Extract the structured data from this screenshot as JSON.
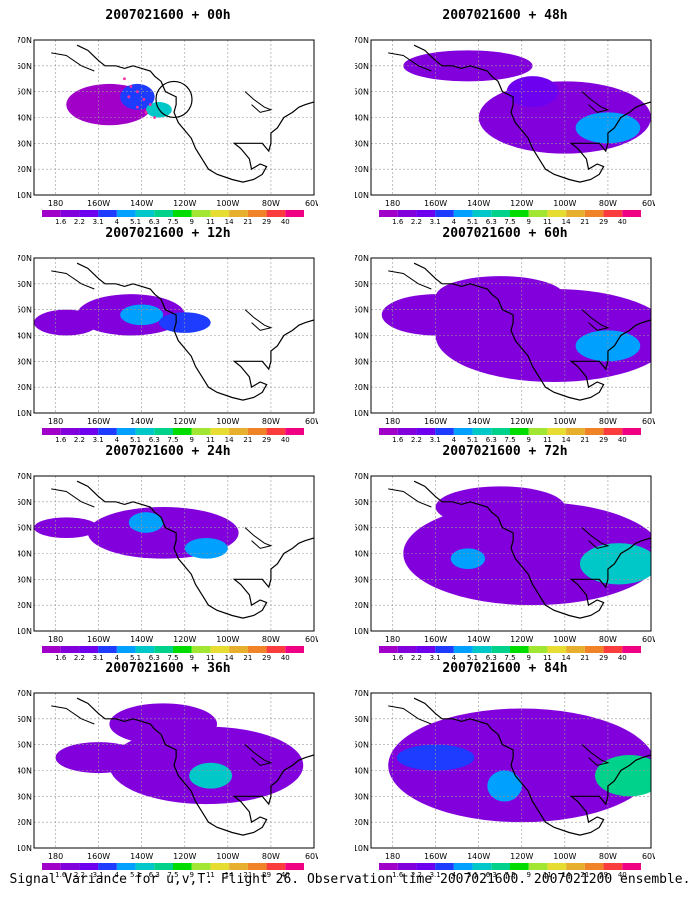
{
  "panels": [
    {
      "title": "2007021600 + 00h",
      "lead": "00h"
    },
    {
      "title": "2007021600 + 48h",
      "lead": "48h"
    },
    {
      "title": "2007021600 + 12h",
      "lead": "12h"
    },
    {
      "title": "2007021600 + 60h",
      "lead": "60h"
    },
    {
      "title": "2007021600 + 24h",
      "lead": "24h"
    },
    {
      "title": "2007021600 + 72h",
      "lead": "72h"
    },
    {
      "title": "2007021600 + 36h",
      "lead": "36h"
    },
    {
      "title": "2007021600 + 84h",
      "lead": "84h"
    }
  ],
  "lat_labels": [
    "70N",
    "60N",
    "50N",
    "40N",
    "30N",
    "20N",
    "10N"
  ],
  "lon_labels": [
    "180",
    "160W",
    "140W",
    "120W",
    "100W",
    "80W",
    "60W"
  ],
  "colorbar": {
    "levels": [
      "1.6",
      "2.2",
      "3.1",
      "4",
      "5.1",
      "6.3",
      "7.5",
      "9",
      "11",
      "14",
      "21",
      "29",
      "40"
    ],
    "colors": [
      "#a000c8",
      "#8200dc",
      "#6e00f0",
      "#1e3cff",
      "#00a0ff",
      "#00c8c8",
      "#00d28c",
      "#00dc00",
      "#a0e632",
      "#e6dc32",
      "#e6af2d",
      "#f08228",
      "#fa3c3c",
      "#f00082"
    ]
  },
  "footer": "Signal Variance for u,v,T. Flight 26. Observation time 2007021600. 2007021200 ensemble."
}
